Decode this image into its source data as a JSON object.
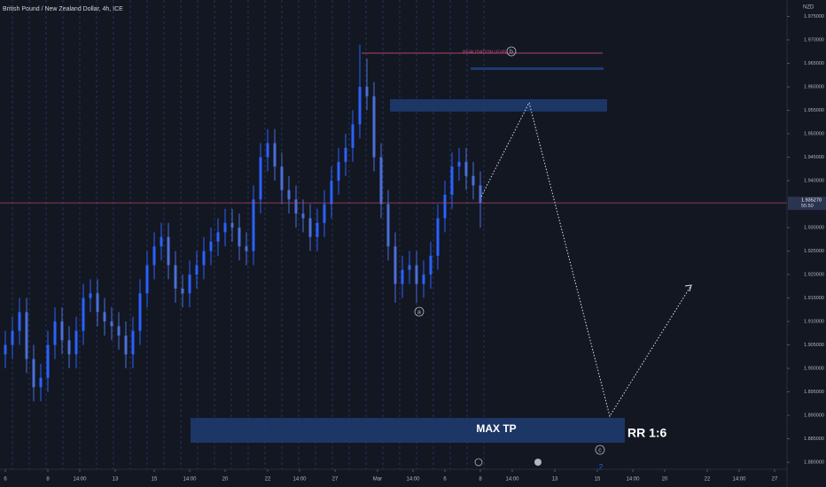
{
  "chart_data": {
    "type": "candlestick",
    "title": "British Pound / New Zealand Dollar, 4h, ICE",
    "currency": "NZD",
    "x": [
      0,
      1,
      2,
      3,
      4,
      5,
      6,
      7,
      8,
      9,
      10,
      11,
      12,
      13,
      14,
      15,
      16,
      17,
      18,
      19,
      20,
      21,
      22,
      23,
      24,
      25,
      26,
      27,
      28,
      29,
      30,
      31,
      32,
      33,
      34,
      35,
      36,
      37,
      38,
      39,
      40,
      41,
      42,
      43,
      44,
      45,
      46,
      47,
      48,
      49,
      50,
      51,
      52,
      53,
      54,
      55,
      56,
      57,
      58,
      59,
      60,
      61,
      62,
      63,
      64,
      65,
      66,
      67
    ],
    "open": [
      1.903,
      1.905,
      1.908,
      1.912,
      1.902,
      1.896,
      1.898,
      1.905,
      1.91,
      1.906,
      1.903,
      1.908,
      1.915,
      1.916,
      1.912,
      1.91,
      1.909,
      1.907,
      1.903,
      1.908,
      1.916,
      1.922,
      1.926,
      1.928,
      1.922,
      1.917,
      1.916,
      1.92,
      1.922,
      1.925,
      1.927,
      1.929,
      1.931,
      1.93,
      1.926,
      1.925,
      1.936,
      1.945,
      1.948,
      1.943,
      1.938,
      1.936,
      1.933,
      1.932,
      1.928,
      1.931,
      1.935,
      1.94,
      1.944,
      1.947,
      1.952,
      1.96,
      1.958,
      1.945,
      1.935,
      1.926,
      1.918,
      1.921,
      1.922,
      1.918,
      1.92,
      1.924,
      1.932,
      1.937,
      1.943,
      1.944,
      1.941,
      1.939
    ],
    "high": [
      1.908,
      1.911,
      1.915,
      1.915,
      1.905,
      1.901,
      1.908,
      1.913,
      1.913,
      1.909,
      1.911,
      1.918,
      1.919,
      1.919,
      1.915,
      1.913,
      1.912,
      1.91,
      1.911,
      1.919,
      1.925,
      1.929,
      1.931,
      1.931,
      1.925,
      1.92,
      1.923,
      1.925,
      1.928,
      1.93,
      1.932,
      1.934,
      1.934,
      1.933,
      1.929,
      1.939,
      1.948,
      1.951,
      1.951,
      1.946,
      1.941,
      1.939,
      1.936,
      1.935,
      1.934,
      1.938,
      1.943,
      1.947,
      1.95,
      1.955,
      1.969,
      1.966,
      1.961,
      1.948,
      1.938,
      1.929,
      1.924,
      1.925,
      1.925,
      1.923,
      1.927,
      1.935,
      1.94,
      1.946,
      1.947,
      1.947,
      1.944,
      1.942
    ],
    "low": [
      1.9,
      1.902,
      1.905,
      1.899,
      1.893,
      1.893,
      1.895,
      1.902,
      1.903,
      1.9,
      1.9,
      1.905,
      1.912,
      1.909,
      1.907,
      1.906,
      1.904,
      1.9,
      1.9,
      1.905,
      1.913,
      1.919,
      1.923,
      1.919,
      1.914,
      1.913,
      1.913,
      1.917,
      1.919,
      1.922,
      1.924,
      1.926,
      1.927,
      1.923,
      1.922,
      1.922,
      1.933,
      1.942,
      1.94,
      1.935,
      1.933,
      1.93,
      1.929,
      1.925,
      1.925,
      1.928,
      1.932,
      1.937,
      1.941,
      1.944,
      1.949,
      1.955,
      1.942,
      1.932,
      1.923,
      1.914,
      1.915,
      1.918,
      1.914,
      1.915,
      1.917,
      1.921,
      1.929,
      1.934,
      1.94,
      1.938,
      1.936,
      1.93
    ],
    "close": [
      1.905,
      1.908,
      1.912,
      1.902,
      1.896,
      1.898,
      1.905,
      1.91,
      1.906,
      1.903,
      1.908,
      1.915,
      1.916,
      1.912,
      1.91,
      1.909,
      1.907,
      1.903,
      1.908,
      1.916,
      1.922,
      1.926,
      1.928,
      1.922,
      1.917,
      1.916,
      1.92,
      1.922,
      1.925,
      1.927,
      1.929,
      1.931,
      1.93,
      1.926,
      1.925,
      1.936,
      1.945,
      1.948,
      1.943,
      1.938,
      1.936,
      1.933,
      1.932,
      1.928,
      1.931,
      1.935,
      1.94,
      1.944,
      1.947,
      1.952,
      1.96,
      1.958,
      1.945,
      1.935,
      1.926,
      1.918,
      1.921,
      1.922,
      1.918,
      1.92,
      1.924,
      1.932,
      1.937,
      1.943,
      1.944,
      1.941,
      1.939,
      1.93527
    ],
    "up_color": "#2962ff",
    "down_color": "#4a6fd8",
    "last_price": {
      "value": 1.93527,
      "label": "1.935270"
    },
    "countdown": "55:50",
    "xlim": [
      -0.75,
      110.25
    ],
    "xticks": [
      {
        "value": 0,
        "label": "6"
      },
      {
        "value": 6,
        "label": "8"
      },
      {
        "value": 10.5,
        "label": "14:00"
      },
      {
        "value": 15.5,
        "label": "13"
      },
      {
        "value": 21,
        "label": "15"
      },
      {
        "value": 26,
        "label": "14:00"
      },
      {
        "value": 31,
        "label": "20"
      },
      {
        "value": 37,
        "label": "22"
      },
      {
        "value": 41.5,
        "label": "14:00"
      },
      {
        "value": 46.5,
        "label": "27"
      },
      {
        "value": 52.5,
        "label": "Mar"
      },
      {
        "value": 57.5,
        "label": "14:00"
      },
      {
        "value": 62,
        "label": "6"
      },
      {
        "value": 67,
        "label": "8"
      },
      {
        "value": 71.5,
        "label": "14:00"
      },
      {
        "value": 77.5,
        "label": "13"
      },
      {
        "value": 83.5,
        "label": "15"
      },
      {
        "value": 88.5,
        "label": "14:00"
      },
      {
        "value": 93,
        "label": "20"
      },
      {
        "value": 99,
        "label": "22"
      },
      {
        "value": 103.5,
        "label": "14:00"
      },
      {
        "value": 108.5,
        "label": "27"
      }
    ],
    "ylim": [
      1.8785,
      1.9785
    ],
    "yticks": [
      {
        "value": 1.88,
        "label": "1.880000"
      },
      {
        "value": 1.885,
        "label": "1.885000"
      },
      {
        "value": 1.89,
        "label": "1.890000"
      },
      {
        "value": 1.895,
        "label": "1.895000"
      },
      {
        "value": 1.9,
        "label": "1.900000"
      },
      {
        "value": 1.905,
        "label": "1.905000"
      },
      {
        "value": 1.91,
        "label": "1.910000"
      },
      {
        "value": 1.915,
        "label": "1.915000"
      },
      {
        "value": 1.92,
        "label": "1.920000"
      },
      {
        "value": 1.925,
        "label": "1.925000"
      },
      {
        "value": 1.93,
        "label": "1.930000"
      },
      {
        "value": 1.94,
        "label": "1.940000"
      },
      {
        "value": 1.945,
        "label": "1.945000"
      },
      {
        "value": 1.95,
        "label": "1.950000"
      },
      {
        "value": 1.955,
        "label": "1.955000"
      },
      {
        "value": 1.96,
        "label": "1.960000"
      },
      {
        "value": 1.965,
        "label": "1.965000"
      },
      {
        "value": 1.97,
        "label": "1.970000"
      },
      {
        "value": 1.975,
        "label": "1.975000"
      }
    ],
    "annotations": {
      "invalidation": "INVALIDATION LEVEL",
      "wave_b": "b",
      "wave_a": "a",
      "wave_c": "c",
      "wave_2": "2",
      "target": "MAX TP",
      "ratio": "RR 1:6"
    }
  }
}
